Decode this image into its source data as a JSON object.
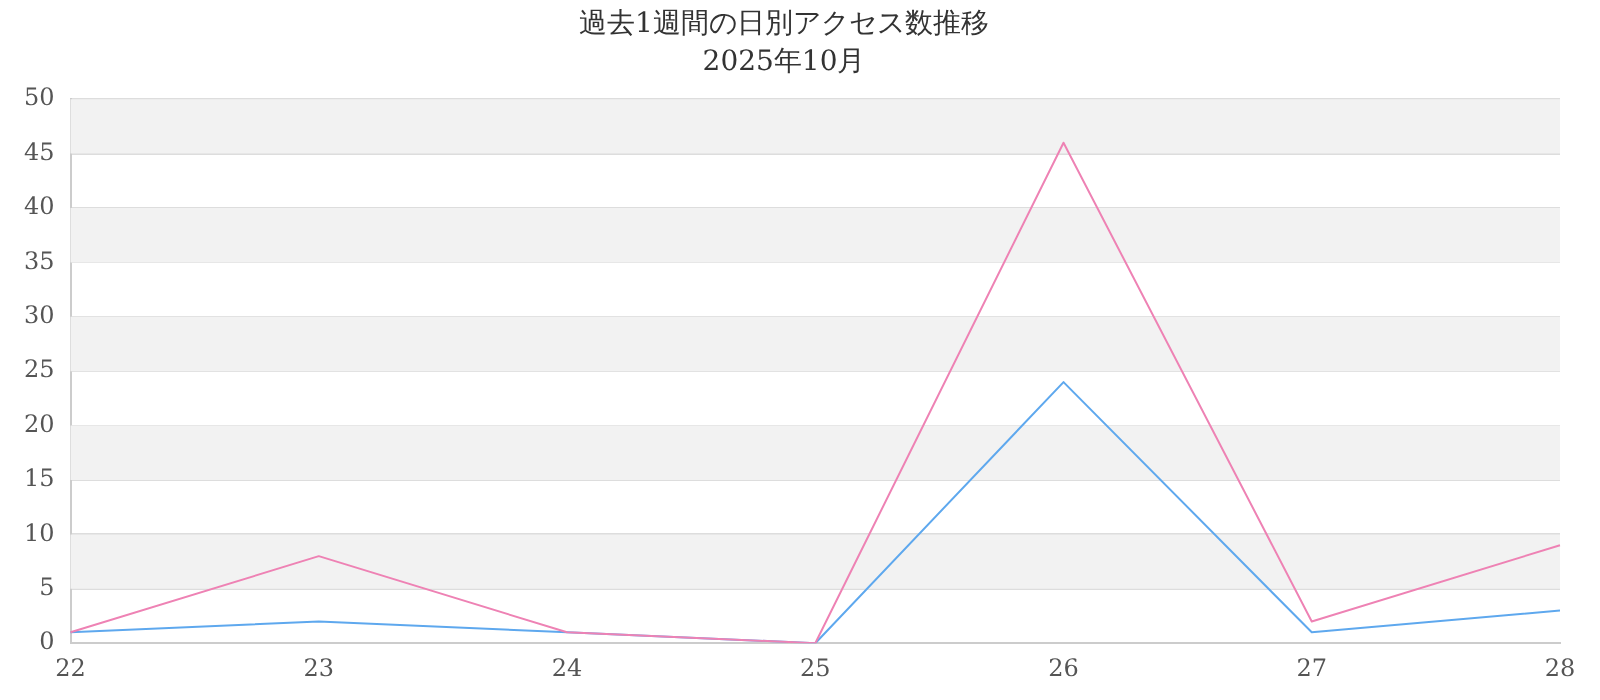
{
  "chart_data": {
    "type": "line",
    "title": "過去1週間の日別アクセス数推移",
    "subtitle": "2025年10月",
    "categories": [
      "22",
      "23",
      "24",
      "25",
      "26",
      "27",
      "28"
    ],
    "series": [
      {
        "color": "#ee82b4",
        "values": [
          1,
          8,
          1,
          0,
          46,
          2,
          9
        ]
      },
      {
        "color": "#5ea8ee",
        "values": [
          1,
          2,
          1,
          0,
          24,
          1,
          3
        ]
      }
    ],
    "ylim": [
      0,
      50
    ],
    "yticks": [
      0,
      5,
      10,
      15,
      20,
      25,
      30,
      35,
      40,
      45,
      50
    ],
    "grid": "y",
    "legend": false,
    "marker": "none",
    "line_style": "solid"
  }
}
